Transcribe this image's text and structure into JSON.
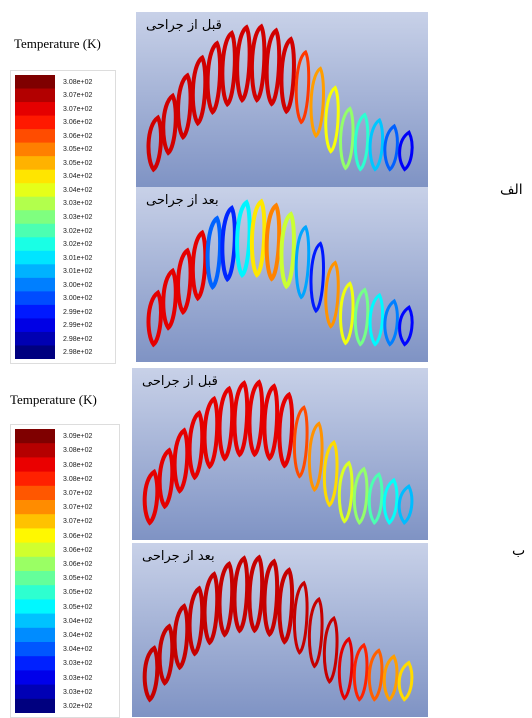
{
  "figure": {
    "panels": [
      {
        "label": "الف",
        "colorbar": {
          "title": "Temperature (K)",
          "labels": [
            "3.08e+02",
            "3.07e+02",
            "3.07e+02",
            "3.06e+02",
            "3.06e+02",
            "3.05e+02",
            "3.05e+02",
            "3.04e+02",
            "3.04e+02",
            "3.03e+02",
            "3.03e+02",
            "3.02e+02",
            "3.02e+02",
            "3.01e+02",
            "3.01e+02",
            "3.00e+02",
            "3.00e+02",
            "2.99e+02",
            "2.99e+02",
            "2.98e+02",
            "2.98e+02"
          ]
        },
        "images": [
          {
            "caption": "قبل از جراحی"
          },
          {
            "caption": "بعد از جراحی"
          }
        ]
      },
      {
        "label": "ب",
        "colorbar": {
          "title": "Temperature (K)",
          "labels": [
            "3.09e+02",
            "3.08e+02",
            "3.08e+02",
            "3.08e+02",
            "3.07e+02",
            "3.07e+02",
            "3.07e+02",
            "3.06e+02",
            "3.06e+02",
            "3.06e+02",
            "3.05e+02",
            "3.05e+02",
            "3.05e+02",
            "3.04e+02",
            "3.04e+02",
            "3.04e+02",
            "3.03e+02",
            "3.03e+02",
            "3.03e+02",
            "3.02e+02"
          ]
        },
        "images": [
          {
            "caption": "قبل از جراحی"
          },
          {
            "caption": "بعد از جراحی"
          }
        ]
      }
    ]
  }
}
